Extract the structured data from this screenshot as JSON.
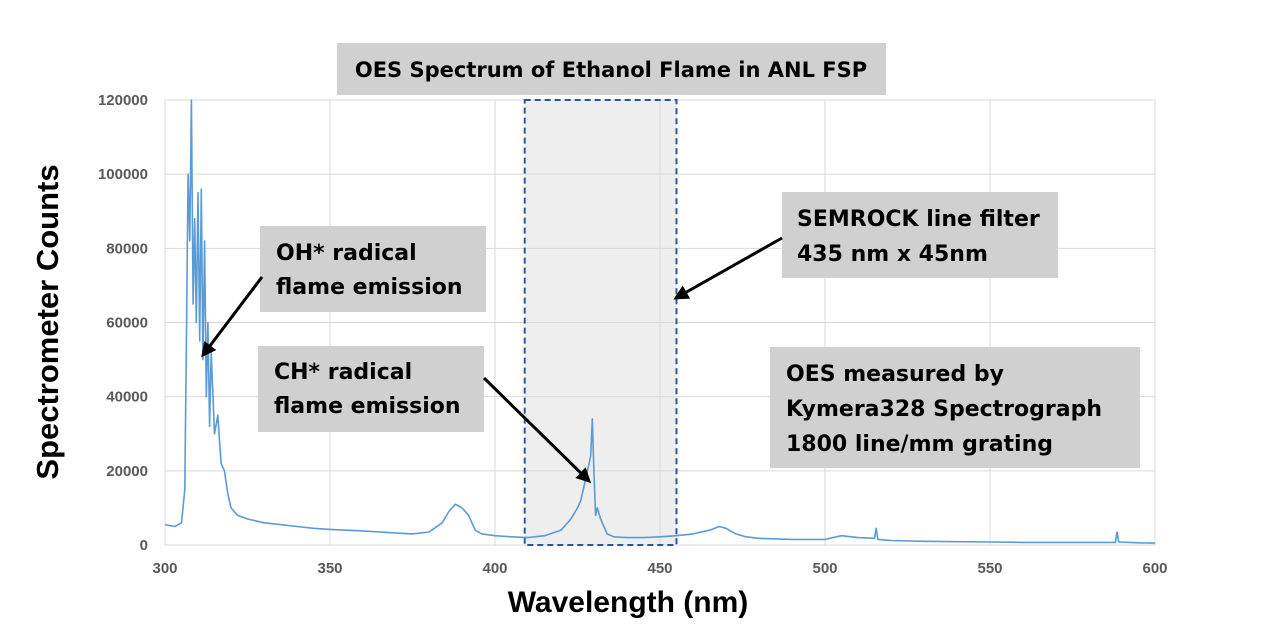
{
  "chart_data": {
    "type": "line",
    "title": "OES Spectrum of Ethanol Flame in ANL FSP",
    "xlabel": "Wavelength (nm)",
    "ylabel": "Spectrometer Counts",
    "xlim": [
      300,
      600
    ],
    "ylim": [
      0,
      120000
    ],
    "x_ticks": [
      "300",
      "350",
      "400",
      "450",
      "500",
      "550",
      "600"
    ],
    "y_ticks": [
      "0",
      "20000",
      "40000",
      "60000",
      "80000",
      "100000",
      "120000"
    ],
    "grid": true,
    "legend": "none",
    "series": [
      {
        "color": "#5b9bd5",
        "x": [
          300,
          303,
          305,
          306,
          306.5,
          307,
          307.5,
          308,
          308.5,
          309,
          309.5,
          310,
          310.5,
          311,
          311.5,
          312,
          312.5,
          313,
          313.5,
          314,
          315,
          316,
          317,
          318,
          319,
          320,
          322,
          325,
          330,
          335,
          340,
          345,
          350,
          355,
          360,
          365,
          370,
          375,
          380,
          384,
          386,
          388,
          390,
          392,
          394,
          396,
          400,
          405,
          410,
          415,
          420,
          423,
          425,
          426,
          427,
          428,
          429,
          429.5,
          430,
          430.5,
          431,
          432,
          433,
          434,
          436,
          440,
          445,
          450,
          455,
          460,
          465,
          468,
          470,
          473,
          476,
          480,
          490,
          500,
          505,
          510,
          515,
          515.5,
          516,
          520,
          530,
          540,
          550,
          560,
          570,
          580,
          588,
          588.5,
          589,
          595,
          600
        ],
        "y": [
          5500,
          5000,
          6000,
          15000,
          55000,
          100000,
          82000,
          120000,
          65000,
          88000,
          60000,
          95000,
          55000,
          96000,
          50000,
          82000,
          40000,
          60000,
          32000,
          52000,
          30000,
          35000,
          22000,
          20000,
          14000,
          10000,
          8000,
          7000,
          6000,
          5500,
          5000,
          4500,
          4200,
          4000,
          3800,
          3500,
          3200,
          3000,
          3500,
          6000,
          9000,
          11000,
          10000,
          8000,
          4000,
          3000,
          2500,
          2200,
          2000,
          2500,
          4000,
          7000,
          10000,
          12000,
          16000,
          20000,
          24000,
          34000,
          19000,
          8000,
          10000,
          7000,
          5000,
          3000,
          2200,
          2000,
          2000,
          2200,
          2500,
          3000,
          4000,
          5000,
          4500,
          3000,
          2200,
          1800,
          1500,
          1500,
          2500,
          2000,
          1800,
          4500,
          1500,
          1200,
          1000,
          900,
          800,
          700,
          700,
          700,
          700,
          3500,
          800,
          600,
          500
        ]
      }
    ],
    "shaded_region": {
      "x_start": 409,
      "x_end": 455,
      "color": "#d9d9d9"
    },
    "annotations": [
      {
        "lines": [
          "OH* radical",
          "flame emission"
        ]
      },
      {
        "lines": [
          "CH* radical",
          "flame emission"
        ]
      },
      {
        "lines": [
          "SEMROCK line filter",
          "435 nm x 45nm"
        ]
      },
      {
        "lines": [
          "OES measured by",
          "Kymera328 Spectrograph",
          "1800 line/mm grating"
        ]
      }
    ]
  }
}
